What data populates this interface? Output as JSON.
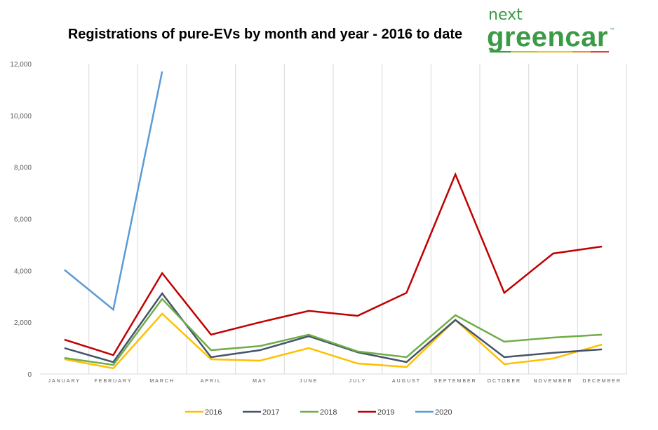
{
  "logo": {
    "line1": "next",
    "line2": "greencar",
    "tm": "™",
    "green": "#3a9a45"
  },
  "chart_data": {
    "type": "line",
    "title": "Registrations of pure-EVs by month and year - 2016 to date",
    "xlabel": "",
    "ylabel": "",
    "categories": [
      "JANUARY",
      "FEBRUARY",
      "MARCH",
      "APRIL",
      "MAY",
      "JUNE",
      "JULY",
      "AUGUST",
      "SEPTEMBER",
      "OCTOBER",
      "NOVEMBER",
      "DECEMBER"
    ],
    "ylim": [
      0,
      12000
    ],
    "yticks": [
      0,
      2000,
      4000,
      6000,
      8000,
      10000,
      12000
    ],
    "ytick_labels": [
      "0",
      "2,000",
      "4,000",
      "6,000",
      "8,000",
      "10,000",
      "12,000"
    ],
    "grid": "vertical",
    "legend": "bottom",
    "series": [
      {
        "name": "2016",
        "color": "#FFC000",
        "values": [
          570,
          220,
          2330,
          570,
          515,
          1000,
          405,
          270,
          2090,
          380,
          600,
          1140
        ]
      },
      {
        "name": "2017",
        "color": "#44546A",
        "values": [
          1000,
          460,
          3115,
          650,
          920,
          1460,
          840,
          460,
          2090,
          650,
          820,
          950
        ]
      },
      {
        "name": "2018",
        "color": "#70AD47",
        "values": [
          620,
          350,
          2900,
          920,
          1080,
          1520,
          870,
          650,
          2275,
          1250,
          1410,
          1520
        ]
      },
      {
        "name": "2019",
        "color": "#C00000",
        "values": [
          1330,
          730,
          3900,
          1520,
          2000,
          2440,
          2250,
          3140,
          7720,
          3140,
          4660,
          4930
        ]
      },
      {
        "name": "2020",
        "color": "#5B9BD5",
        "values": [
          4030,
          2490,
          11700,
          null,
          null,
          null,
          null,
          null,
          null,
          null,
          null,
          null
        ]
      }
    ]
  }
}
